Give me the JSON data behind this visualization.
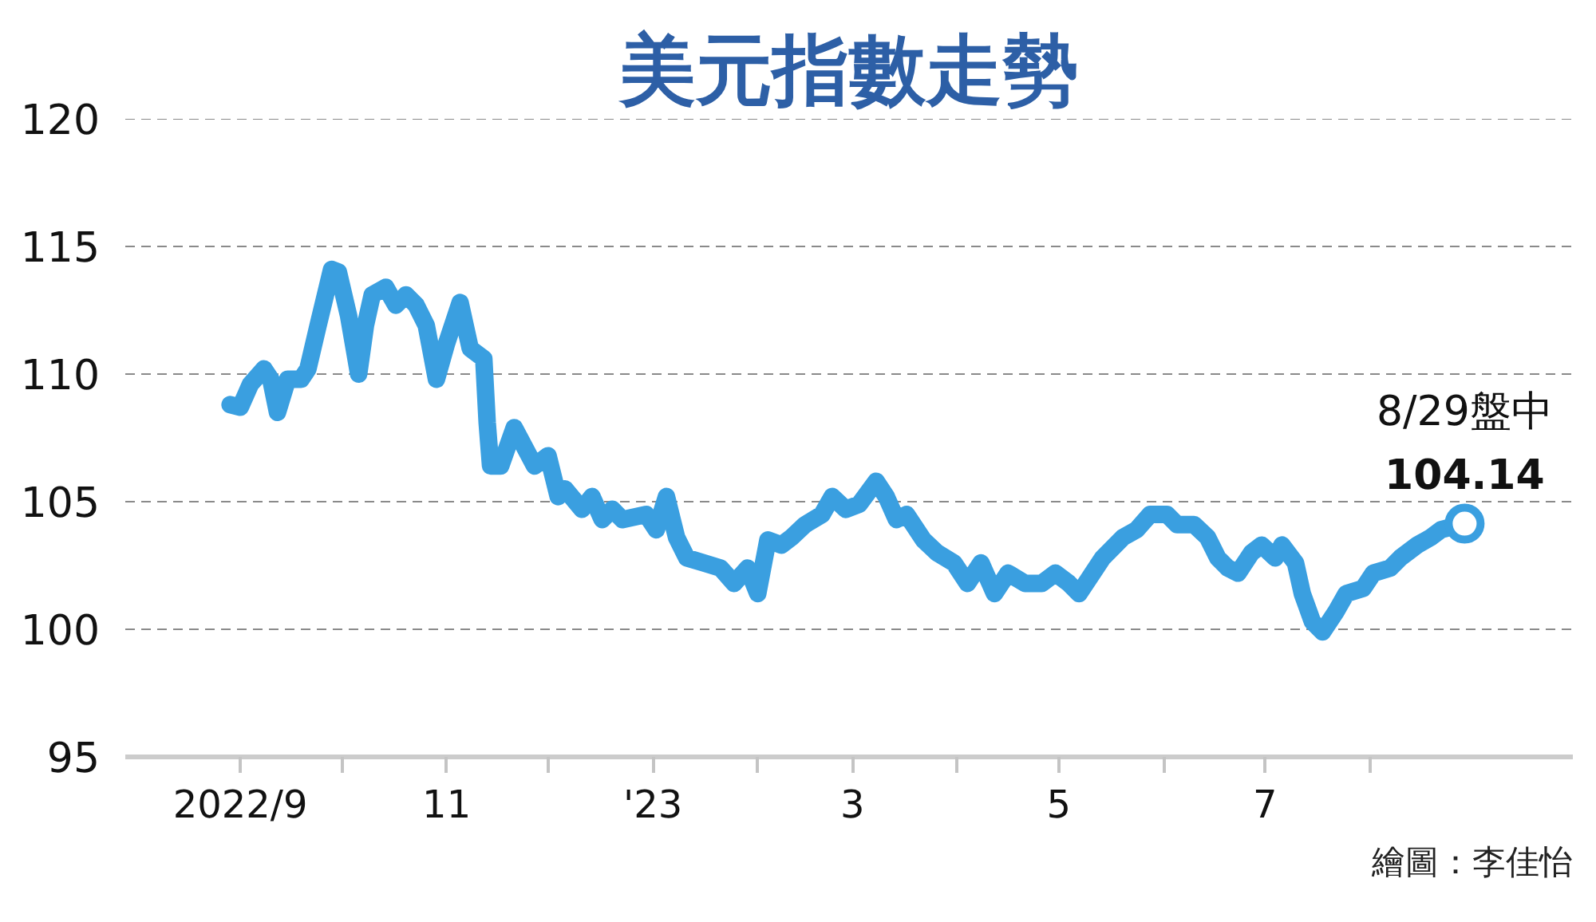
{
  "chart_data": {
    "type": "line",
    "title": "美元指數走勢",
    "x": [
      "2022-08-29",
      "2022-09-01",
      "2022-09-04",
      "2022-09-08",
      "2022-09-10",
      "2022-09-12",
      "2022-09-15",
      "2022-09-19",
      "2022-09-21",
      "2022-09-24",
      "2022-09-28",
      "2022-09-30",
      "2022-10-03",
      "2022-10-06",
      "2022-10-08",
      "2022-10-10",
      "2022-10-14",
      "2022-10-17",
      "2022-10-20",
      "2022-10-23",
      "2022-10-26",
      "2022-10-29",
      "2022-11-01",
      "2022-11-05",
      "2022-11-08",
      "2022-11-12",
      "2022-11-13",
      "2022-11-14",
      "2022-11-17",
      "2022-11-21",
      "2022-11-27",
      "2022-12-01",
      "2022-12-04",
      "2022-12-06",
      "2022-12-11",
      "2022-12-14",
      "2022-12-17",
      "2022-12-20",
      "2022-12-23",
      "2022-12-30",
      "2023-01-02",
      "2023-01-05",
      "2023-01-08",
      "2023-01-11",
      "2023-01-16",
      "2023-01-21",
      "2023-01-25",
      "2023-01-29",
      "2023-02-01",
      "2023-02-04",
      "2023-02-08",
      "2023-02-11",
      "2023-02-15",
      "2023-02-20",
      "2023-02-23",
      "2023-02-27",
      "2023-03-03",
      "2023-03-08",
      "2023-03-11",
      "2023-03-14",
      "2023-03-17",
      "2023-03-22",
      "2023-03-26",
      "2023-03-31",
      "2023-04-04",
      "2023-04-08",
      "2023-04-12",
      "2023-04-16",
      "2023-04-21",
      "2023-04-26",
      "2023-04-30",
      "2023-05-04",
      "2023-05-07",
      "2023-05-11",
      "2023-05-14",
      "2023-05-20",
      "2023-05-24",
      "2023-05-28",
      "2023-06-02",
      "2023-06-05",
      "2023-06-10",
      "2023-06-14",
      "2023-06-17",
      "2023-06-20",
      "2023-06-23",
      "2023-06-27",
      "2023-06-30",
      "2023-07-04",
      "2023-07-06",
      "2023-07-10",
      "2023-07-12",
      "2023-07-15",
      "2023-07-18",
      "2023-07-22",
      "2023-07-25",
      "2023-07-30",
      "2023-08-02",
      "2023-08-07",
      "2023-08-10",
      "2023-08-15",
      "2023-08-19",
      "2023-08-22",
      "2023-08-29"
    ],
    "series": [
      {
        "color": "#3a9fe0",
        "values": [
          108.8,
          108.7,
          109.6,
          110.2,
          109.8,
          108.5,
          109.8,
          109.8,
          110.2,
          111.9,
          114.1,
          114.0,
          112.3,
          110.0,
          111.9,
          113.1,
          113.4,
          112.7,
          113.1,
          112.7,
          111.9,
          109.8,
          111.2,
          112.8,
          111.0,
          110.6,
          108.1,
          106.4,
          106.4,
          107.9,
          106.4,
          106.8,
          105.2,
          105.5,
          104.7,
          105.2,
          104.3,
          104.7,
          104.3,
          104.5,
          103.9,
          105.2,
          103.6,
          102.8,
          102.6,
          102.4,
          101.8,
          102.4,
          101.4,
          103.5,
          103.3,
          103.6,
          104.1,
          104.5,
          105.2,
          104.7,
          104.9,
          105.8,
          105.2,
          104.3,
          104.5,
          103.5,
          103.0,
          102.6,
          101.8,
          102.6,
          101.4,
          102.2,
          101.8,
          101.8,
          102.2,
          101.8,
          101.4,
          102.2,
          102.8,
          103.6,
          103.9,
          104.5,
          104.5,
          104.1,
          104.1,
          103.6,
          102.8,
          102.4,
          102.2,
          103.0,
          103.3,
          102.8,
          103.3,
          102.6,
          101.4,
          100.3,
          99.9,
          100.7,
          101.4,
          101.6,
          102.2,
          102.4,
          102.8,
          103.3,
          103.6,
          103.9,
          104.14
        ]
      }
    ],
    "xlim": [
      "2022-07-29",
      "2023-09-30"
    ],
    "ylim": [
      95,
      120
    ],
    "xticks": [
      {
        "value": "2022-09-01",
        "label": "2022/9"
      },
      {
        "value": "2022-10-01",
        "label": null
      },
      {
        "value": "2022-11-01",
        "label": "11"
      },
      {
        "value": "2022-12-01",
        "label": null
      },
      {
        "value": "2023-01-01",
        "label": "'23"
      },
      {
        "value": "2023-02-01",
        "label": null
      },
      {
        "value": "2023-03-01",
        "label": "3"
      },
      {
        "value": "2023-04-01",
        "label": null
      },
      {
        "value": "2023-05-01",
        "label": "5"
      },
      {
        "value": "2023-06-01",
        "label": null
      },
      {
        "value": "2023-07-01",
        "label": "7"
      },
      {
        "value": "2023-08-01",
        "label": null
      }
    ],
    "yticks": [
      95,
      100,
      105,
      110,
      115,
      120
    ],
    "grid": "y",
    "line_style": "solid",
    "annotations": [
      {
        "text": "8/29盤中",
        "x": "2023-08-29",
        "y": 104.14
      },
      {
        "text": "104.14",
        "x": "2023-08-29",
        "y": 104.14
      },
      "繪圖：李佳怡"
    ]
  }
}
